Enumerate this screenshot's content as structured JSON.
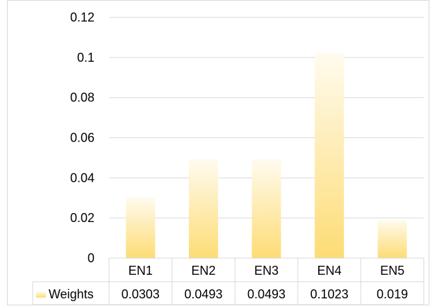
{
  "chart_data": {
    "type": "bar",
    "categories": [
      "EN1",
      "EN2",
      "EN3",
      "EN4",
      "EN5"
    ],
    "series": [
      {
        "name": "Weights",
        "values": [
          0.0303,
          0.0493,
          0.0493,
          0.1023,
          0.019
        ]
      }
    ],
    "data_table": {
      "series_label": "Weights",
      "values": [
        "0.0303",
        "0.0493",
        "0.0493",
        "0.1023",
        "0.019"
      ]
    },
    "ylim": [
      0,
      0.12
    ],
    "yticks": [
      0,
      0.02,
      0.04,
      0.06,
      0.08,
      0.1,
      0.12
    ],
    "ytick_labels": [
      "0",
      "0.02",
      "0.04",
      "0.06",
      "0.08",
      "0.1",
      "0.12"
    ],
    "grid": true,
    "legend": "data-table",
    "colors": {
      "bar_top": "#fffbef",
      "bar_bottom": "#fddc75",
      "grid": "#d9d9d9"
    }
  }
}
